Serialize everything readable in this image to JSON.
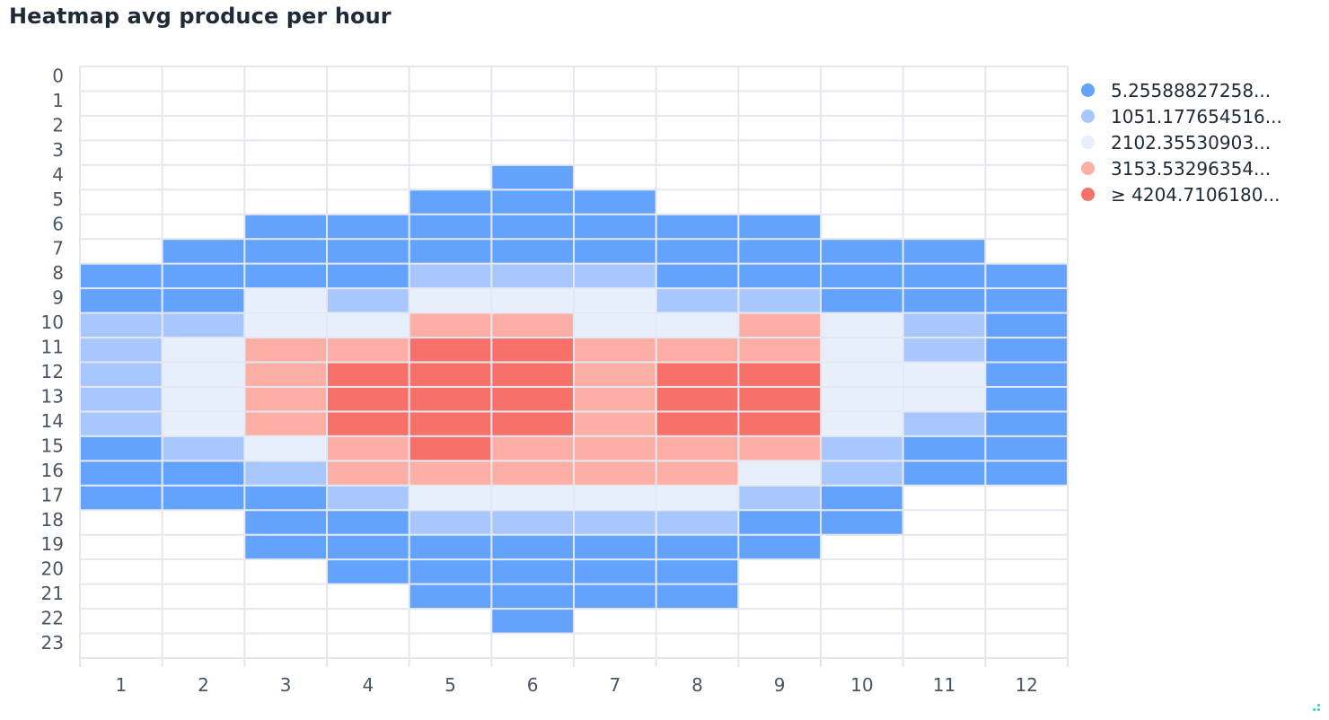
{
  "title": "Heatmap avg produce per hour",
  "colors": {
    "bin0": "#63a2fd",
    "bin1": "#a8c8fd",
    "bin2": "#e7effd",
    "bin3": "#fdaea5",
    "bin4": "#f7716b",
    "grid": "#e5e7f0",
    "axis_text": "#4b5563"
  },
  "chart_data": {
    "type": "heatmap",
    "title": "Heatmap avg produce per hour",
    "x_categories": [
      "1",
      "2",
      "3",
      "4",
      "5",
      "6",
      "7",
      "8",
      "9",
      "10",
      "11",
      "12"
    ],
    "y_categories": [
      "0",
      "1",
      "2",
      "3",
      "4",
      "5",
      "6",
      "7",
      "8",
      "9",
      "10",
      "11",
      "12",
      "13",
      "14",
      "15",
      "16",
      "17",
      "18",
      "19",
      "20",
      "21",
      "22",
      "23"
    ],
    "legend": [
      {
        "label": "5.25588827258...",
        "color": "#63a2fd"
      },
      {
        "label": "1051.177654516...",
        "color": "#a8c8fd"
      },
      {
        "label": "2102.35530903...",
        "color": "#e7effd"
      },
      {
        "label": "3153.53296354...",
        "color": "#fdaea5"
      },
      {
        "label": "≥ 4204.7106180...",
        "color": "#f7716b"
      }
    ],
    "legend_position": "right",
    "cells_note": "bins: -1 = no data, 0..4 = legend bin index; rows = hours 0-23, columns = months 1-12",
    "bins": [
      [
        -1,
        -1,
        -1,
        -1,
        -1,
        -1,
        -1,
        -1,
        -1,
        -1,
        -1,
        -1
      ],
      [
        -1,
        -1,
        -1,
        -1,
        -1,
        -1,
        -1,
        -1,
        -1,
        -1,
        -1,
        -1
      ],
      [
        -1,
        -1,
        -1,
        -1,
        -1,
        -1,
        -1,
        -1,
        -1,
        -1,
        -1,
        -1
      ],
      [
        -1,
        -1,
        -1,
        -1,
        -1,
        -1,
        -1,
        -1,
        -1,
        -1,
        -1,
        -1
      ],
      [
        -1,
        -1,
        -1,
        -1,
        -1,
        0,
        -1,
        -1,
        -1,
        -1,
        -1,
        -1
      ],
      [
        -1,
        -1,
        -1,
        -1,
        0,
        0,
        0,
        -1,
        -1,
        -1,
        -1,
        -1
      ],
      [
        -1,
        -1,
        0,
        0,
        0,
        0,
        0,
        0,
        0,
        -1,
        -1,
        -1
      ],
      [
        -1,
        0,
        0,
        0,
        0,
        0,
        0,
        0,
        0,
        0,
        0,
        -1
      ],
      [
        0,
        0,
        0,
        0,
        1,
        1,
        1,
        0,
        0,
        0,
        0,
        0
      ],
      [
        0,
        0,
        2,
        1,
        2,
        2,
        2,
        1,
        1,
        0,
        0,
        0
      ],
      [
        1,
        1,
        2,
        2,
        3,
        3,
        2,
        2,
        3,
        2,
        1,
        0
      ],
      [
        1,
        2,
        3,
        3,
        4,
        4,
        3,
        3,
        3,
        2,
        1,
        0
      ],
      [
        1,
        2,
        3,
        4,
        4,
        4,
        3,
        4,
        4,
        2,
        2,
        0
      ],
      [
        1,
        2,
        3,
        4,
        4,
        4,
        3,
        4,
        4,
        2,
        2,
        0
      ],
      [
        1,
        2,
        3,
        4,
        4,
        4,
        3,
        4,
        4,
        2,
        1,
        0
      ],
      [
        0,
        1,
        2,
        3,
        4,
        3,
        3,
        3,
        3,
        1,
        0,
        0
      ],
      [
        0,
        0,
        1,
        3,
        3,
        3,
        3,
        3,
        2,
        1,
        0,
        0
      ],
      [
        0,
        0,
        0,
        1,
        2,
        2,
        2,
        2,
        1,
        0,
        -1,
        -1
      ],
      [
        -1,
        -1,
        0,
        0,
        1,
        1,
        1,
        1,
        0,
        0,
        -1,
        -1
      ],
      [
        -1,
        -1,
        0,
        0,
        0,
        0,
        0,
        0,
        0,
        -1,
        -1,
        -1
      ],
      [
        -1,
        -1,
        -1,
        0,
        0,
        0,
        0,
        0,
        -1,
        -1,
        -1,
        -1
      ],
      [
        -1,
        -1,
        -1,
        -1,
        0,
        0,
        0,
        0,
        -1,
        -1,
        -1,
        -1
      ],
      [
        -1,
        -1,
        -1,
        -1,
        -1,
        0,
        -1,
        -1,
        -1,
        -1,
        -1,
        -1
      ],
      [
        -1,
        -1,
        -1,
        -1,
        -1,
        -1,
        -1,
        -1,
        -1,
        -1,
        -1,
        -1
      ]
    ]
  }
}
